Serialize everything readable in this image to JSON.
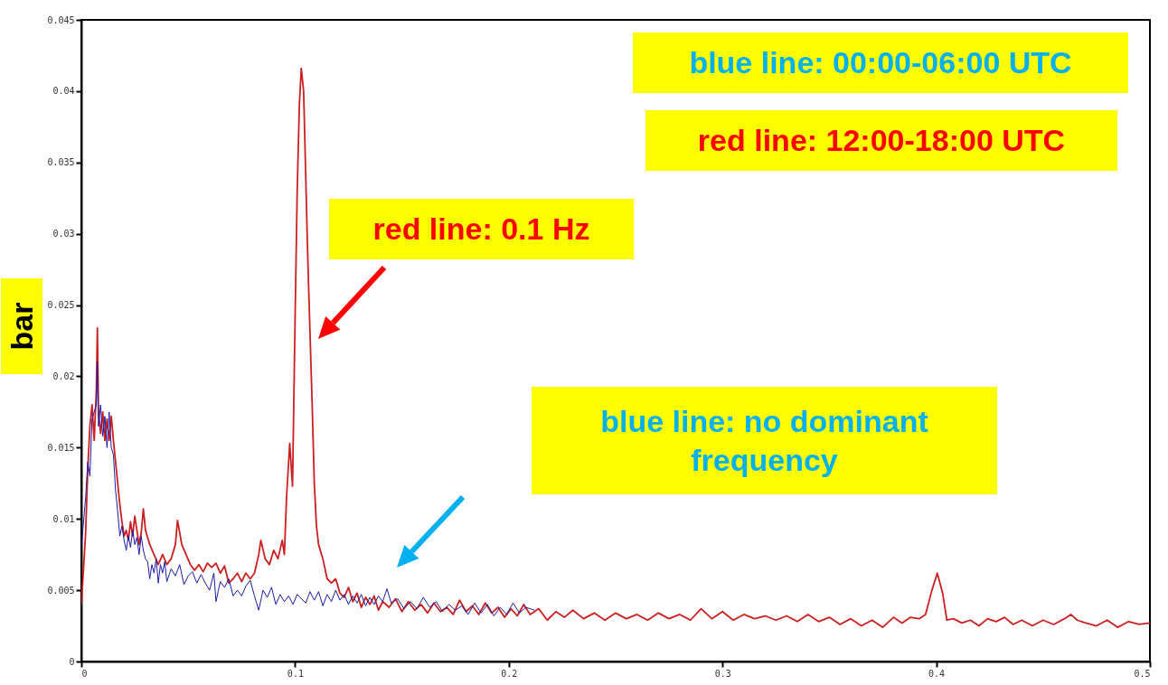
{
  "chart_data": {
    "type": "line",
    "ylabel": "bar",
    "xlim": [
      0,
      0.5
    ],
    "xticks": [
      0,
      0.1,
      0.2,
      0.3,
      0.4,
      0.5
    ],
    "ylim": [
      0,
      0.045
    ],
    "yticks": [
      0,
      0.005,
      0.01,
      0.015,
      0.02,
      0.025,
      0.03,
      0.035,
      0.04,
      0.045
    ],
    "grid": false,
    "annotations": [
      "blue line: 00:00-06:00 UTC",
      "red line: 12:00-18:00 UTC",
      "red line: 0.1 Hz",
      "blue line: no dominant frequency"
    ],
    "series": [
      {
        "color": "#cc2020",
        "x": [
          0,
          0.002,
          0.003,
          0.004,
          0.005,
          0.006,
          0.007,
          0.0075,
          0.008,
          0.009,
          0.01,
          0.011,
          0.012,
          0.013,
          0.014,
          0.015,
          0.016,
          0.017,
          0.018,
          0.019,
          0.02,
          0.021,
          0.022,
          0.023,
          0.024,
          0.025,
          0.026,
          0.027,
          0.028,
          0.029,
          0.03,
          0.032,
          0.034,
          0.036,
          0.038,
          0.04,
          0.042,
          0.044,
          0.045,
          0.047,
          0.049,
          0.051,
          0.053,
          0.055,
          0.057,
          0.059,
          0.061,
          0.063,
          0.065,
          0.067,
          0.069,
          0.071,
          0.073,
          0.075,
          0.077,
          0.079,
          0.081,
          0.083,
          0.084,
          0.086,
          0.088,
          0.09,
          0.092,
          0.094,
          0.095,
          0.096,
          0.0975,
          0.0988,
          0.1,
          0.101,
          0.102,
          0.1029,
          0.104,
          0.105,
          0.106,
          0.107,
          0.108,
          0.109,
          0.11,
          0.111,
          0.113,
          0.115,
          0.117,
          0.119,
          0.121,
          0.123,
          0.125,
          0.127,
          0.129,
          0.131,
          0.133,
          0.135,
          0.137,
          0.139,
          0.141,
          0.144,
          0.147,
          0.15,
          0.153,
          0.156,
          0.159,
          0.162,
          0.165,
          0.168,
          0.171,
          0.174,
          0.177,
          0.18,
          0.183,
          0.186,
          0.189,
          0.192,
          0.195,
          0.198,
          0.201,
          0.204,
          0.207,
          0.21,
          0.214,
          0.218,
          0.222,
          0.226,
          0.23,
          0.235,
          0.24,
          0.245,
          0.25,
          0.255,
          0.26,
          0.265,
          0.27,
          0.275,
          0.28,
          0.285,
          0.29,
          0.295,
          0.3,
          0.305,
          0.31,
          0.315,
          0.32,
          0.325,
          0.33,
          0.335,
          0.34,
          0.345,
          0.35,
          0.355,
          0.36,
          0.365,
          0.37,
          0.375,
          0.38,
          0.384,
          0.388,
          0.392,
          0.395,
          0.398,
          0.4005,
          0.403,
          0.405,
          0.408,
          0.412,
          0.416,
          0.42,
          0.424,
          0.428,
          0.432,
          0.436,
          0.44,
          0.445,
          0.45,
          0.455,
          0.46,
          0.463,
          0.466,
          0.47,
          0.475,
          0.48,
          0.485,
          0.49,
          0.495,
          0.5
        ],
        "values": [
          0.004,
          0.009,
          0.0135,
          0.0165,
          0.018,
          0.0155,
          0.019,
          0.0234,
          0.0175,
          0.016,
          0.0175,
          0.0155,
          0.017,
          0.0155,
          0.0172,
          0.0155,
          0.014,
          0.0125,
          0.011,
          0.0098,
          0.0088,
          0.0092,
          0.0085,
          0.0098,
          0.0088,
          0.0102,
          0.0092,
          0.0082,
          0.009,
          0.0107,
          0.0092,
          0.0082,
          0.0075,
          0.0068,
          0.0075,
          0.0068,
          0.0072,
          0.0082,
          0.0099,
          0.0082,
          0.0075,
          0.0068,
          0.0064,
          0.0068,
          0.0063,
          0.0069,
          0.0066,
          0.0069,
          0.0062,
          0.0067,
          0.0055,
          0.0058,
          0.0062,
          0.0056,
          0.0062,
          0.0058,
          0.0062,
          0.0075,
          0.0085,
          0.0072,
          0.0068,
          0.0078,
          0.0072,
          0.0085,
          0.0075,
          0.0115,
          0.0153,
          0.0123,
          0.024,
          0.033,
          0.039,
          0.0416,
          0.04,
          0.034,
          0.028,
          0.023,
          0.018,
          0.0125,
          0.0095,
          0.0082,
          0.0072,
          0.0058,
          0.0055,
          0.0058,
          0.0048,
          0.0045,
          0.0052,
          0.0042,
          0.0048,
          0.0038,
          0.0045,
          0.004,
          0.0046,
          0.0036,
          0.0042,
          0.0038,
          0.0044,
          0.0035,
          0.0042,
          0.0036,
          0.004,
          0.0034,
          0.0041,
          0.0035,
          0.0038,
          0.0033,
          0.0043,
          0.0035,
          0.0039,
          0.0033,
          0.0041,
          0.0034,
          0.0038,
          0.0031,
          0.0037,
          0.0032,
          0.004,
          0.0033,
          0.0037,
          0.0029,
          0.0035,
          0.0031,
          0.0036,
          0.003,
          0.0034,
          0.0029,
          0.0034,
          0.003,
          0.0033,
          0.0029,
          0.0034,
          0.003,
          0.0033,
          0.0029,
          0.0037,
          0.003,
          0.0035,
          0.0029,
          0.0033,
          0.003,
          0.0032,
          0.0029,
          0.0032,
          0.0028,
          0.0033,
          0.0028,
          0.0031,
          0.0026,
          0.003,
          0.0025,
          0.0029,
          0.0024,
          0.0031,
          0.0027,
          0.0031,
          0.003,
          0.0033,
          0.005,
          0.0062,
          0.0048,
          0.0029,
          0.003,
          0.0027,
          0.0029,
          0.0025,
          0.003,
          0.0028,
          0.0031,
          0.0026,
          0.0029,
          0.0025,
          0.0029,
          0.0026,
          0.003,
          0.0033,
          0.0029,
          0.0027,
          0.0025,
          0.0029,
          0.0024,
          0.0028,
          0.0026,
          0.0027
        ]
      },
      {
        "color": "#1c1ca8",
        "x": [
          0,
          0.002,
          0.003,
          0.004,
          0.005,
          0.006,
          0.007,
          0.0075,
          0.008,
          0.009,
          0.01,
          0.011,
          0.012,
          0.013,
          0.014,
          0.015,
          0.016,
          0.017,
          0.018,
          0.019,
          0.02,
          0.021,
          0.022,
          0.023,
          0.024,
          0.025,
          0.026,
          0.027,
          0.028,
          0.029,
          0.03,
          0.031,
          0.032,
          0.033,
          0.034,
          0.035,
          0.036,
          0.037,
          0.038,
          0.039,
          0.04,
          0.042,
          0.044,
          0.046,
          0.048,
          0.05,
          0.052,
          0.054,
          0.056,
          0.058,
          0.06,
          0.062,
          0.063,
          0.065,
          0.067,
          0.069,
          0.071,
          0.073,
          0.075,
          0.077,
          0.079,
          0.081,
          0.083,
          0.085,
          0.087,
          0.089,
          0.091,
          0.093,
          0.095,
          0.097,
          0.099,
          0.101,
          0.103,
          0.105,
          0.107,
          0.109,
          0.111,
          0.113,
          0.115,
          0.117,
          0.119,
          0.121,
          0.123,
          0.125,
          0.127,
          0.129,
          0.131,
          0.133,
          0.135,
          0.137,
          0.139,
          0.141,
          0.143,
          0.145,
          0.148,
          0.151,
          0.154,
          0.157,
          0.16,
          0.163,
          0.166,
          0.169,
          0.172,
          0.175,
          0.178,
          0.181,
          0.184,
          0.187,
          0.19,
          0.193,
          0.196,
          0.199,
          0.202,
          0.205,
          0.208,
          0.212
        ],
        "values": [
          0.008,
          0.0115,
          0.014,
          0.013,
          0.017,
          0.0175,
          0.018,
          0.021,
          0.0165,
          0.018,
          0.0158,
          0.0172,
          0.015,
          0.0175,
          0.015,
          0.0145,
          0.012,
          0.0105,
          0.0088,
          0.0095,
          0.0085,
          0.0078,
          0.0088,
          0.008,
          0.0092,
          0.0082,
          0.0087,
          0.0075,
          0.0088,
          0.0078,
          0.0072,
          0.007,
          0.0058,
          0.0068,
          0.0062,
          0.0072,
          0.0055,
          0.0068,
          0.0062,
          0.007,
          0.0056,
          0.0065,
          0.006,
          0.0068,
          0.0054,
          0.006,
          0.0063,
          0.0055,
          0.0061,
          0.0055,
          0.005,
          0.0062,
          0.0042,
          0.0056,
          0.0052,
          0.0058,
          0.0046,
          0.005,
          0.0046,
          0.0053,
          0.0057,
          0.0046,
          0.0036,
          0.005,
          0.0045,
          0.0052,
          0.004,
          0.0047,
          0.0042,
          0.0046,
          0.004,
          0.0047,
          0.0044,
          0.0041,
          0.0049,
          0.0043,
          0.0049,
          0.0039,
          0.0047,
          0.0042,
          0.005,
          0.0043,
          0.0047,
          0.004,
          0.0046,
          0.0041,
          0.0047,
          0.0039,
          0.0045,
          0.004,
          0.0046,
          0.0042,
          0.0051,
          0.0041,
          0.0044,
          0.0037,
          0.0042,
          0.0037,
          0.0045,
          0.0038,
          0.0042,
          0.0035,
          0.004,
          0.0036,
          0.0039,
          0.0033,
          0.0041,
          0.0034,
          0.004,
          0.0032,
          0.0038,
          0.0033,
          0.0041,
          0.0034,
          0.0038,
          0.0036
        ]
      }
    ]
  }
}
